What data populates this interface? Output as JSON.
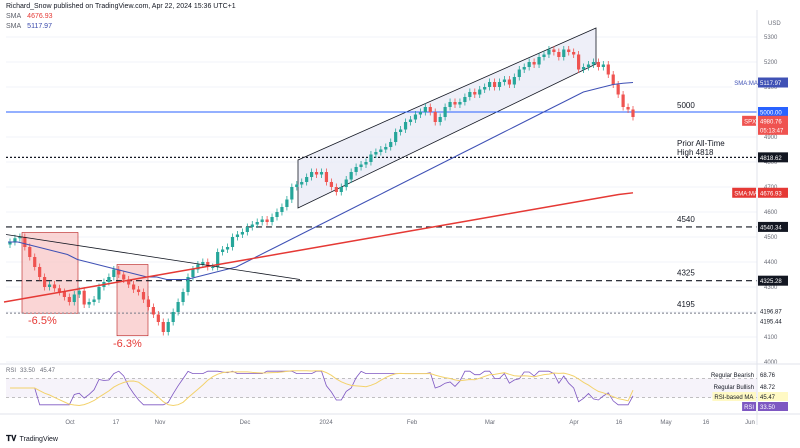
{
  "header": {
    "publisher": "Richard_Snow published on TradingView.com, Apr 22, 2024 15:36 UTC+1",
    "ma1_label": "SMA",
    "ma1_value": "4676.93",
    "ma2_label": "SMA",
    "ma2_value": "5117.97"
  },
  "currency": "USD",
  "logo_text": "TradingView",
  "colors": {
    "up": "#26a69a",
    "down": "#ef5350",
    "sma_long": "#e53935",
    "sma_short": "#3f51b5",
    "level_5000": "#2962ff",
    "channel_fill": "#e8eaf6",
    "rsi": "#7e57c2",
    "rsi_ma": "#f3d26b",
    "box_fill": "#f8c7c7"
  },
  "annotations": {
    "level_5000": "5000",
    "prior_high_line1": "Prior All-Time",
    "prior_high_line2": "High 4818",
    "level_4540": "4540",
    "level_4325": "4325",
    "level_4195": "4195",
    "drop1": "-6.5%",
    "drop2": "-6.3%"
  },
  "price_tags": {
    "sma_short": {
      "label": "SMA:MA",
      "value": "5117.97"
    },
    "level_5000": "5000.00",
    "spx": {
      "label": "SPX",
      "value": "4980.76",
      "countdown": "05:13:47"
    },
    "high_4818": "4818.62",
    "sma_long": {
      "label": "SMA:MA",
      "value": "4676.93"
    },
    "lvl_4540": "4540.34",
    "lvl_4325": "4325.28",
    "lvl_4196": "4196.87",
    "lvl_4195": "4195.44"
  },
  "rsi_panel": {
    "label": "RSI",
    "value1": "33.50",
    "value2": "45.47",
    "legend": [
      {
        "label": "Regular Bearish",
        "value": "68.76"
      },
      {
        "label": "Regular Bullish",
        "value": "48.72"
      },
      {
        "label": "RSI-based MA",
        "value": "45.47"
      },
      {
        "label": "RSI",
        "value": "33.50"
      }
    ]
  },
  "chart_data": {
    "type": "candlestick",
    "symbol": "SPX",
    "ylim": [
      4000,
      5400
    ],
    "y_ticks": [
      4000,
      4100,
      4200,
      4300,
      4400,
      4500,
      4600,
      4700,
      4800,
      4900,
      5000,
      5100,
      5200,
      5300
    ],
    "x_ticks": [
      "Oct",
      "17",
      "Nov",
      "Dec",
      "2024",
      "Feb",
      "Mar",
      "Apr",
      "16",
      "May",
      "16",
      "Jun"
    ],
    "levels": [
      5000,
      4818.62,
      4540.34,
      4325.28,
      4195.44
    ],
    "closes": [
      4480,
      4495,
      4500,
      4460,
      4420,
      4380,
      4340,
      4300,
      4310,
      4295,
      4280,
      4260,
      4240,
      4270,
      4285,
      4230,
      4240,
      4250,
      4300,
      4320,
      4340,
      4370,
      4350,
      4330,
      4310,
      4290,
      4280,
      4250,
      4220,
      4190,
      4160,
      4120,
      4160,
      4200,
      4240,
      4280,
      4340,
      4370,
      4390,
      4400,
      4380,
      4380,
      4440,
      4450,
      4460,
      4500,
      4510,
      4520,
      4540,
      4550,
      4560,
      4570,
      4560,
      4580,
      4600,
      4620,
      4650,
      4700,
      4710,
      4720,
      4740,
      4760,
      4750,
      4760,
      4720,
      4700,
      4680,
      4700,
      4730,
      4760,
      4780,
      4790,
      4800,
      4830,
      4840,
      4850,
      4860,
      4880,
      4920,
      4930,
      4960,
      4970,
      4990,
      5000,
      5020,
      5000,
      4960,
      4980,
      5020,
      5040,
      5030,
      5040,
      5060,
      5080,
      5070,
      5090,
      5100,
      5120,
      5100,
      5120,
      5130,
      5110,
      5140,
      5170,
      5180,
      5200,
      5190,
      5220,
      5230,
      5250,
      5240,
      5220,
      5250,
      5240,
      5230,
      5170,
      5180,
      5190,
      5200,
      5180,
      5190,
      5150,
      5110,
      5070,
      5020,
      5010,
      4980
    ],
    "sma_short": [
      4480,
      4480,
      4470,
      4460,
      4450,
      4440,
      4430,
      4410,
      4400,
      4390,
      4380,
      4370,
      4360,
      4350,
      4340,
      4340,
      4330,
      4330,
      4330,
      4340,
      4350,
      4360,
      4370,
      4380,
      4400,
      4420,
      4440,
      4460,
      4480,
      4500,
      4520,
      4540,
      4560,
      4580,
      4600,
      4620,
      4640,
      4660,
      4680,
      4700,
      4720,
      4740,
      4760,
      4780,
      4800,
      4820,
      4840,
      4860,
      4880,
      4900,
      4920,
      4940,
      4960,
      4980,
      5000,
      5020,
      5040,
      5060,
      5080,
      5090,
      5100,
      5110,
      5115,
      5118
    ],
    "sma_long": [
      4240,
      4250,
      4260,
      4270,
      4280,
      4290,
      4300,
      4310,
      4320,
      4330,
      4340,
      4350,
      4360,
      4370,
      4380,
      4390,
      4400,
      4410,
      4420,
      4430,
      4440,
      4450,
      4460,
      4470,
      4480,
      4490,
      4500,
      4510,
      4520,
      4530,
      4540,
      4550,
      4560,
      4570,
      4580,
      4590,
      4600,
      4610,
      4620,
      4630,
      4640,
      4650,
      4660,
      4670,
      4677
    ]
  }
}
